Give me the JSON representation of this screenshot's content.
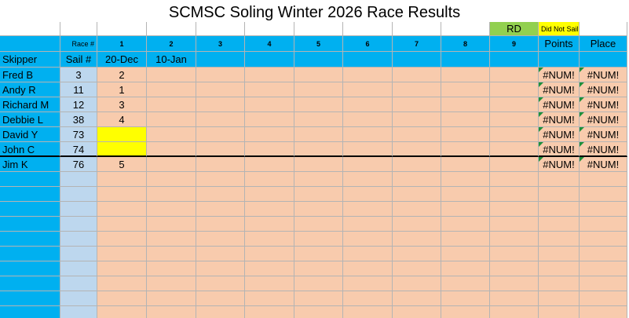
{
  "title": "SCMSC Soling Winter 2026 Race Results",
  "legend": {
    "rd": {
      "label": "RD",
      "color": "#92d050"
    },
    "dns": {
      "label": "Did Not Sail",
      "color": "#ffff00"
    }
  },
  "header": {
    "race_label": "Race #",
    "races": [
      "1",
      "2",
      "3",
      "4",
      "5",
      "6",
      "7",
      "8",
      "9"
    ],
    "points": "Points",
    "place": "Place"
  },
  "subheader": {
    "skipper": "Skipper",
    "sail": "Sail #",
    "dates": [
      "20-Dec",
      "10-Jan"
    ]
  },
  "rows": [
    {
      "skipper": "Fred B",
      "sail": 3,
      "race1": 2,
      "points": "#NUM!",
      "place": "#NUM!"
    },
    {
      "skipper": "Andy R",
      "sail": 11,
      "race1": 1,
      "points": "#NUM!",
      "place": "#NUM!"
    },
    {
      "skipper": "Richard M",
      "sail": 12,
      "race1": 3,
      "points": "#NUM!",
      "place": "#NUM!"
    },
    {
      "skipper": "Debbie L",
      "sail": 38,
      "race1": 4,
      "points": "#NUM!",
      "place": "#NUM!"
    },
    {
      "skipper": "David Y",
      "sail": 73,
      "race1_color": "#ffff00",
      "points": "#NUM!",
      "place": "#NUM!"
    },
    {
      "skipper": "John C",
      "sail": 74,
      "race1_color": "#ffff00",
      "points": "#NUM!",
      "place": "#NUM!"
    },
    {
      "skipper": "Jim K",
      "sail": 76,
      "race1": 5,
      "points": "#NUM!",
      "place": "#NUM!"
    }
  ]
}
